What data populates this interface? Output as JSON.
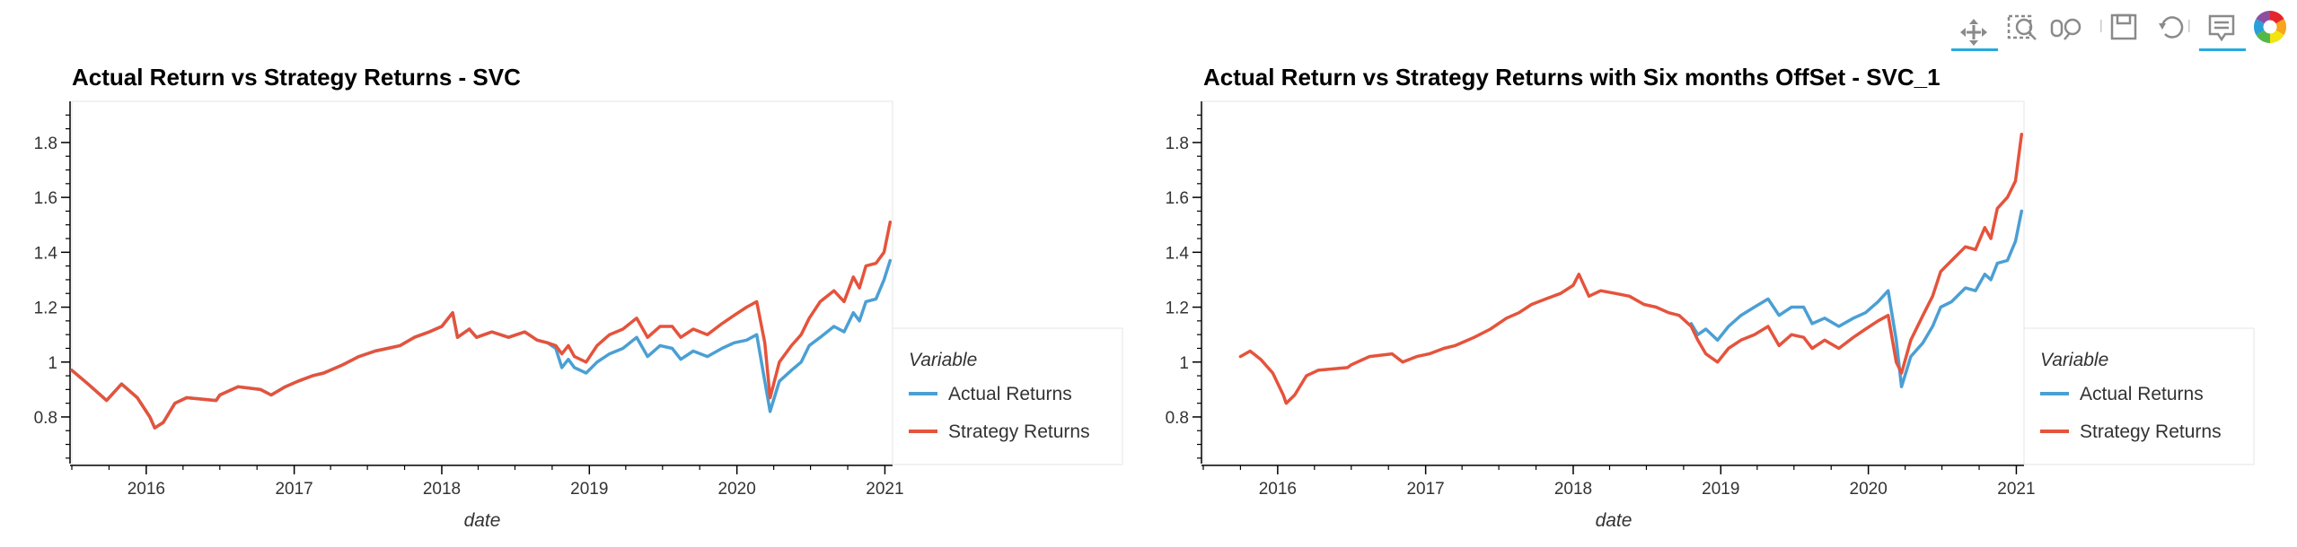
{
  "toolbar": {
    "tools": [
      {
        "name": "pan-tool",
        "icon": "pan-icon",
        "active": true
      },
      {
        "name": "box-zoom-tool",
        "icon": "box-zoom-icon",
        "active": false
      },
      {
        "name": "wheel-zoom-tool",
        "icon": "wheel-zoom-icon",
        "active": false
      },
      {
        "name": "save-tool",
        "icon": "save-icon",
        "active": false
      },
      {
        "name": "reset-tool",
        "icon": "reset-icon",
        "active": false
      },
      {
        "name": "hover-tool",
        "icon": "hover-icon",
        "active": true
      },
      {
        "name": "bokeh-logo",
        "icon": "bokeh-logo-icon",
        "active": false
      }
    ],
    "active_color": "#26aae1"
  },
  "colors": {
    "actual": "#4b9fd4",
    "strategy": "#e5533c"
  },
  "chart_data": [
    {
      "type": "line",
      "title": "Actual Return vs Strategy Returns - SVC",
      "xlabel": "date",
      "ylabel": "",
      "x_axis_type": "datetime",
      "xlim": [
        "2015-07-01",
        "2021-01-20"
      ],
      "ylim": [
        0.63,
        1.95
      ],
      "x_ticks": [
        "2016",
        "2017",
        "2018",
        "2019",
        "2020",
        "2021"
      ],
      "y_ticks": [
        0.8,
        1,
        1.2,
        1.4,
        1.6,
        1.8
      ],
      "grid": false,
      "legend": {
        "title": "Variable",
        "position": "right"
      },
      "series": [
        {
          "name": "Actual Returns",
          "color": "#4b9fd4",
          "x": [
            "2015-07-01",
            "2015-08-10",
            "2015-09-25",
            "2015-11-01",
            "2015-12-10",
            "2016-01-10",
            "2016-01-22",
            "2016-02-12",
            "2016-03-12",
            "2016-04-10",
            "2016-06-22",
            "2016-07-01",
            "2016-08-15",
            "2016-10-10",
            "2016-11-05",
            "2016-12-10",
            "2017-01-10",
            "2017-02-15",
            "2017-03-15",
            "2017-05-01",
            "2017-06-10",
            "2017-07-20",
            "2017-08-20",
            "2017-09-20",
            "2017-10-25",
            "2017-12-01",
            "2018-01-01",
            "2018-01-28",
            "2018-02-09",
            "2018-03-10",
            "2018-03-28",
            "2018-05-05",
            "2018-06-15",
            "2018-07-25",
            "2018-08-25",
            "2018-09-20",
            "2018-10-10",
            "2018-10-25",
            "2018-11-10",
            "2018-11-25",
            "2018-12-24",
            "2019-01-20",
            "2019-02-20",
            "2019-03-25",
            "2019-04-28",
            "2019-05-25",
            "2019-06-25",
            "2019-07-25",
            "2019-08-15",
            "2019-09-15",
            "2019-10-20",
            "2019-11-25",
            "2019-12-25",
            "2020-01-25",
            "2020-02-19",
            "2020-03-10",
            "2020-03-23",
            "2020-04-15",
            "2020-05-15",
            "2020-06-08",
            "2020-06-28",
            "2020-07-25",
            "2020-08-28",
            "2020-09-22",
            "2020-10-15",
            "2020-10-30",
            "2020-11-15",
            "2020-12-10",
            "2020-12-30",
            "2021-01-14"
          ],
          "y": [
            0.97,
            0.92,
            0.86,
            0.92,
            0.87,
            0.8,
            0.76,
            0.78,
            0.85,
            0.87,
            0.86,
            0.88,
            0.91,
            0.9,
            0.88,
            0.91,
            0.93,
            0.95,
            0.96,
            0.99,
            1.02,
            1.04,
            1.05,
            1.06,
            1.09,
            1.11,
            1.13,
            1.18,
            1.09,
            1.12,
            1.09,
            1.11,
            1.09,
            1.11,
            1.08,
            1.07,
            1.05,
            0.98,
            1.01,
            0.98,
            0.96,
            1.0,
            1.03,
            1.05,
            1.09,
            1.02,
            1.06,
            1.05,
            1.01,
            1.04,
            1.02,
            1.05,
            1.07,
            1.08,
            1.1,
            0.93,
            0.82,
            0.93,
            0.97,
            1.0,
            1.06,
            1.09,
            1.13,
            1.11,
            1.18,
            1.15,
            1.22,
            1.23,
            1.3,
            1.37
          ]
        },
        {
          "name": "Strategy Returns",
          "color": "#e5533c",
          "x": [
            "2015-07-01",
            "2015-08-10",
            "2015-09-25",
            "2015-11-01",
            "2015-12-10",
            "2016-01-10",
            "2016-01-22",
            "2016-02-12",
            "2016-03-12",
            "2016-04-10",
            "2016-06-22",
            "2016-07-01",
            "2016-08-15",
            "2016-10-10",
            "2016-11-05",
            "2016-12-10",
            "2017-01-10",
            "2017-02-15",
            "2017-03-15",
            "2017-05-01",
            "2017-06-10",
            "2017-07-20",
            "2017-08-20",
            "2017-09-20",
            "2017-10-25",
            "2017-12-01",
            "2018-01-01",
            "2018-01-28",
            "2018-02-09",
            "2018-03-10",
            "2018-03-28",
            "2018-05-05",
            "2018-06-15",
            "2018-07-25",
            "2018-08-25",
            "2018-09-20",
            "2018-10-10",
            "2018-10-25",
            "2018-11-10",
            "2018-11-25",
            "2018-12-24",
            "2019-01-20",
            "2019-02-20",
            "2019-03-25",
            "2019-04-28",
            "2019-05-25",
            "2019-06-25",
            "2019-07-25",
            "2019-08-15",
            "2019-09-15",
            "2019-10-20",
            "2019-11-25",
            "2019-12-25",
            "2020-01-25",
            "2020-02-19",
            "2020-03-10",
            "2020-03-23",
            "2020-04-15",
            "2020-05-15",
            "2020-06-08",
            "2020-06-28",
            "2020-07-25",
            "2020-08-28",
            "2020-09-22",
            "2020-10-15",
            "2020-10-30",
            "2020-11-15",
            "2020-12-10",
            "2020-12-30",
            "2021-01-14"
          ],
          "y": [
            0.97,
            0.92,
            0.86,
            0.92,
            0.87,
            0.8,
            0.76,
            0.78,
            0.85,
            0.87,
            0.86,
            0.88,
            0.91,
            0.9,
            0.88,
            0.91,
            0.93,
            0.95,
            0.96,
            0.99,
            1.02,
            1.04,
            1.05,
            1.06,
            1.09,
            1.11,
            1.13,
            1.18,
            1.09,
            1.12,
            1.09,
            1.11,
            1.09,
            1.11,
            1.08,
            1.07,
            1.06,
            1.03,
            1.06,
            1.02,
            1.0,
            1.06,
            1.1,
            1.12,
            1.16,
            1.09,
            1.13,
            1.13,
            1.09,
            1.12,
            1.1,
            1.14,
            1.17,
            1.2,
            1.22,
            1.07,
            0.87,
            1.0,
            1.06,
            1.1,
            1.16,
            1.22,
            1.26,
            1.22,
            1.31,
            1.27,
            1.35,
            1.36,
            1.4,
            1.51
          ]
        }
      ]
    },
    {
      "type": "line",
      "title": "Actual Return vs Strategy Returns with Six months OffSet - SVC_1",
      "xlabel": "date",
      "ylabel": "",
      "x_axis_type": "datetime",
      "xlim": [
        "2015-07-01",
        "2021-01-20"
      ],
      "ylim": [
        0.63,
        1.95
      ],
      "x_ticks": [
        "2016",
        "2017",
        "2018",
        "2019",
        "2020",
        "2021"
      ],
      "y_ticks": [
        0.8,
        1,
        1.2,
        1.4,
        1.6,
        1.8
      ],
      "grid": false,
      "legend": {
        "title": "Variable",
        "position": "right"
      },
      "series": [
        {
          "name": "Actual Returns",
          "color": "#4b9fd4",
          "x": [
            "2018-10-20",
            "2018-11-05",
            "2018-11-25",
            "2018-12-24",
            "2019-01-20",
            "2019-02-20",
            "2019-03-25",
            "2019-04-28",
            "2019-05-25",
            "2019-06-25",
            "2019-07-25",
            "2019-08-15",
            "2019-09-15",
            "2019-10-20",
            "2019-11-25",
            "2019-12-25",
            "2020-01-25",
            "2020-02-19",
            "2020-03-10",
            "2020-03-23",
            "2020-04-15",
            "2020-05-15",
            "2020-06-08",
            "2020-06-28",
            "2020-07-25",
            "2020-08-28",
            "2020-09-22",
            "2020-10-15",
            "2020-10-30",
            "2020-11-15",
            "2020-12-10",
            "2020-12-30",
            "2021-01-14"
          ],
          "y": [
            1.14,
            1.1,
            1.12,
            1.08,
            1.13,
            1.17,
            1.2,
            1.23,
            1.17,
            1.2,
            1.2,
            1.14,
            1.16,
            1.13,
            1.16,
            1.18,
            1.22,
            1.26,
            1.08,
            0.91,
            1.02,
            1.07,
            1.13,
            1.2,
            1.22,
            1.27,
            1.26,
            1.32,
            1.3,
            1.36,
            1.37,
            1.44,
            1.55
          ]
        },
        {
          "name": "Strategy Returns",
          "color": "#e5533c",
          "x": [
            "2015-10-01",
            "2015-10-25",
            "2015-11-20",
            "2015-12-20",
            "2016-01-15",
            "2016-01-22",
            "2016-02-12",
            "2016-03-12",
            "2016-04-10",
            "2016-06-22",
            "2016-07-01",
            "2016-08-15",
            "2016-10-10",
            "2016-11-05",
            "2016-12-10",
            "2017-01-10",
            "2017-02-15",
            "2017-03-15",
            "2017-05-01",
            "2017-06-10",
            "2017-07-20",
            "2017-08-20",
            "2017-09-20",
            "2017-10-25",
            "2017-12-01",
            "2018-01-01",
            "2018-01-15",
            "2018-02-09",
            "2018-03-10",
            "2018-04-15",
            "2018-05-20",
            "2018-06-25",
            "2018-07-25",
            "2018-08-25",
            "2018-09-20",
            "2018-10-20",
            "2018-11-05",
            "2018-11-25",
            "2018-12-24",
            "2019-01-20",
            "2019-02-20",
            "2019-03-25",
            "2019-04-28",
            "2019-05-25",
            "2019-06-25",
            "2019-07-25",
            "2019-08-15",
            "2019-09-15",
            "2019-10-20",
            "2019-11-25",
            "2019-12-25",
            "2020-01-25",
            "2020-02-19",
            "2020-03-10",
            "2020-03-23",
            "2020-04-15",
            "2020-05-15",
            "2020-06-08",
            "2020-06-28",
            "2020-07-25",
            "2020-08-28",
            "2020-09-22",
            "2020-10-15",
            "2020-10-30",
            "2020-11-15",
            "2020-12-10",
            "2020-12-30",
            "2021-01-14"
          ],
          "y": [
            1.02,
            1.04,
            1.01,
            0.96,
            0.88,
            0.85,
            0.88,
            0.95,
            0.97,
            0.98,
            0.99,
            1.02,
            1.03,
            1.0,
            1.02,
            1.03,
            1.05,
            1.06,
            1.09,
            1.12,
            1.16,
            1.18,
            1.21,
            1.23,
            1.25,
            1.28,
            1.32,
            1.24,
            1.26,
            1.25,
            1.24,
            1.21,
            1.2,
            1.18,
            1.17,
            1.13,
            1.08,
            1.03,
            1.0,
            1.05,
            1.08,
            1.1,
            1.13,
            1.06,
            1.1,
            1.09,
            1.05,
            1.08,
            1.05,
            1.09,
            1.12,
            1.15,
            1.17,
            1.0,
            0.96,
            1.08,
            1.17,
            1.24,
            1.33,
            1.37,
            1.42,
            1.41,
            1.49,
            1.45,
            1.56,
            1.6,
            1.66,
            1.83
          ]
        }
      ]
    }
  ]
}
